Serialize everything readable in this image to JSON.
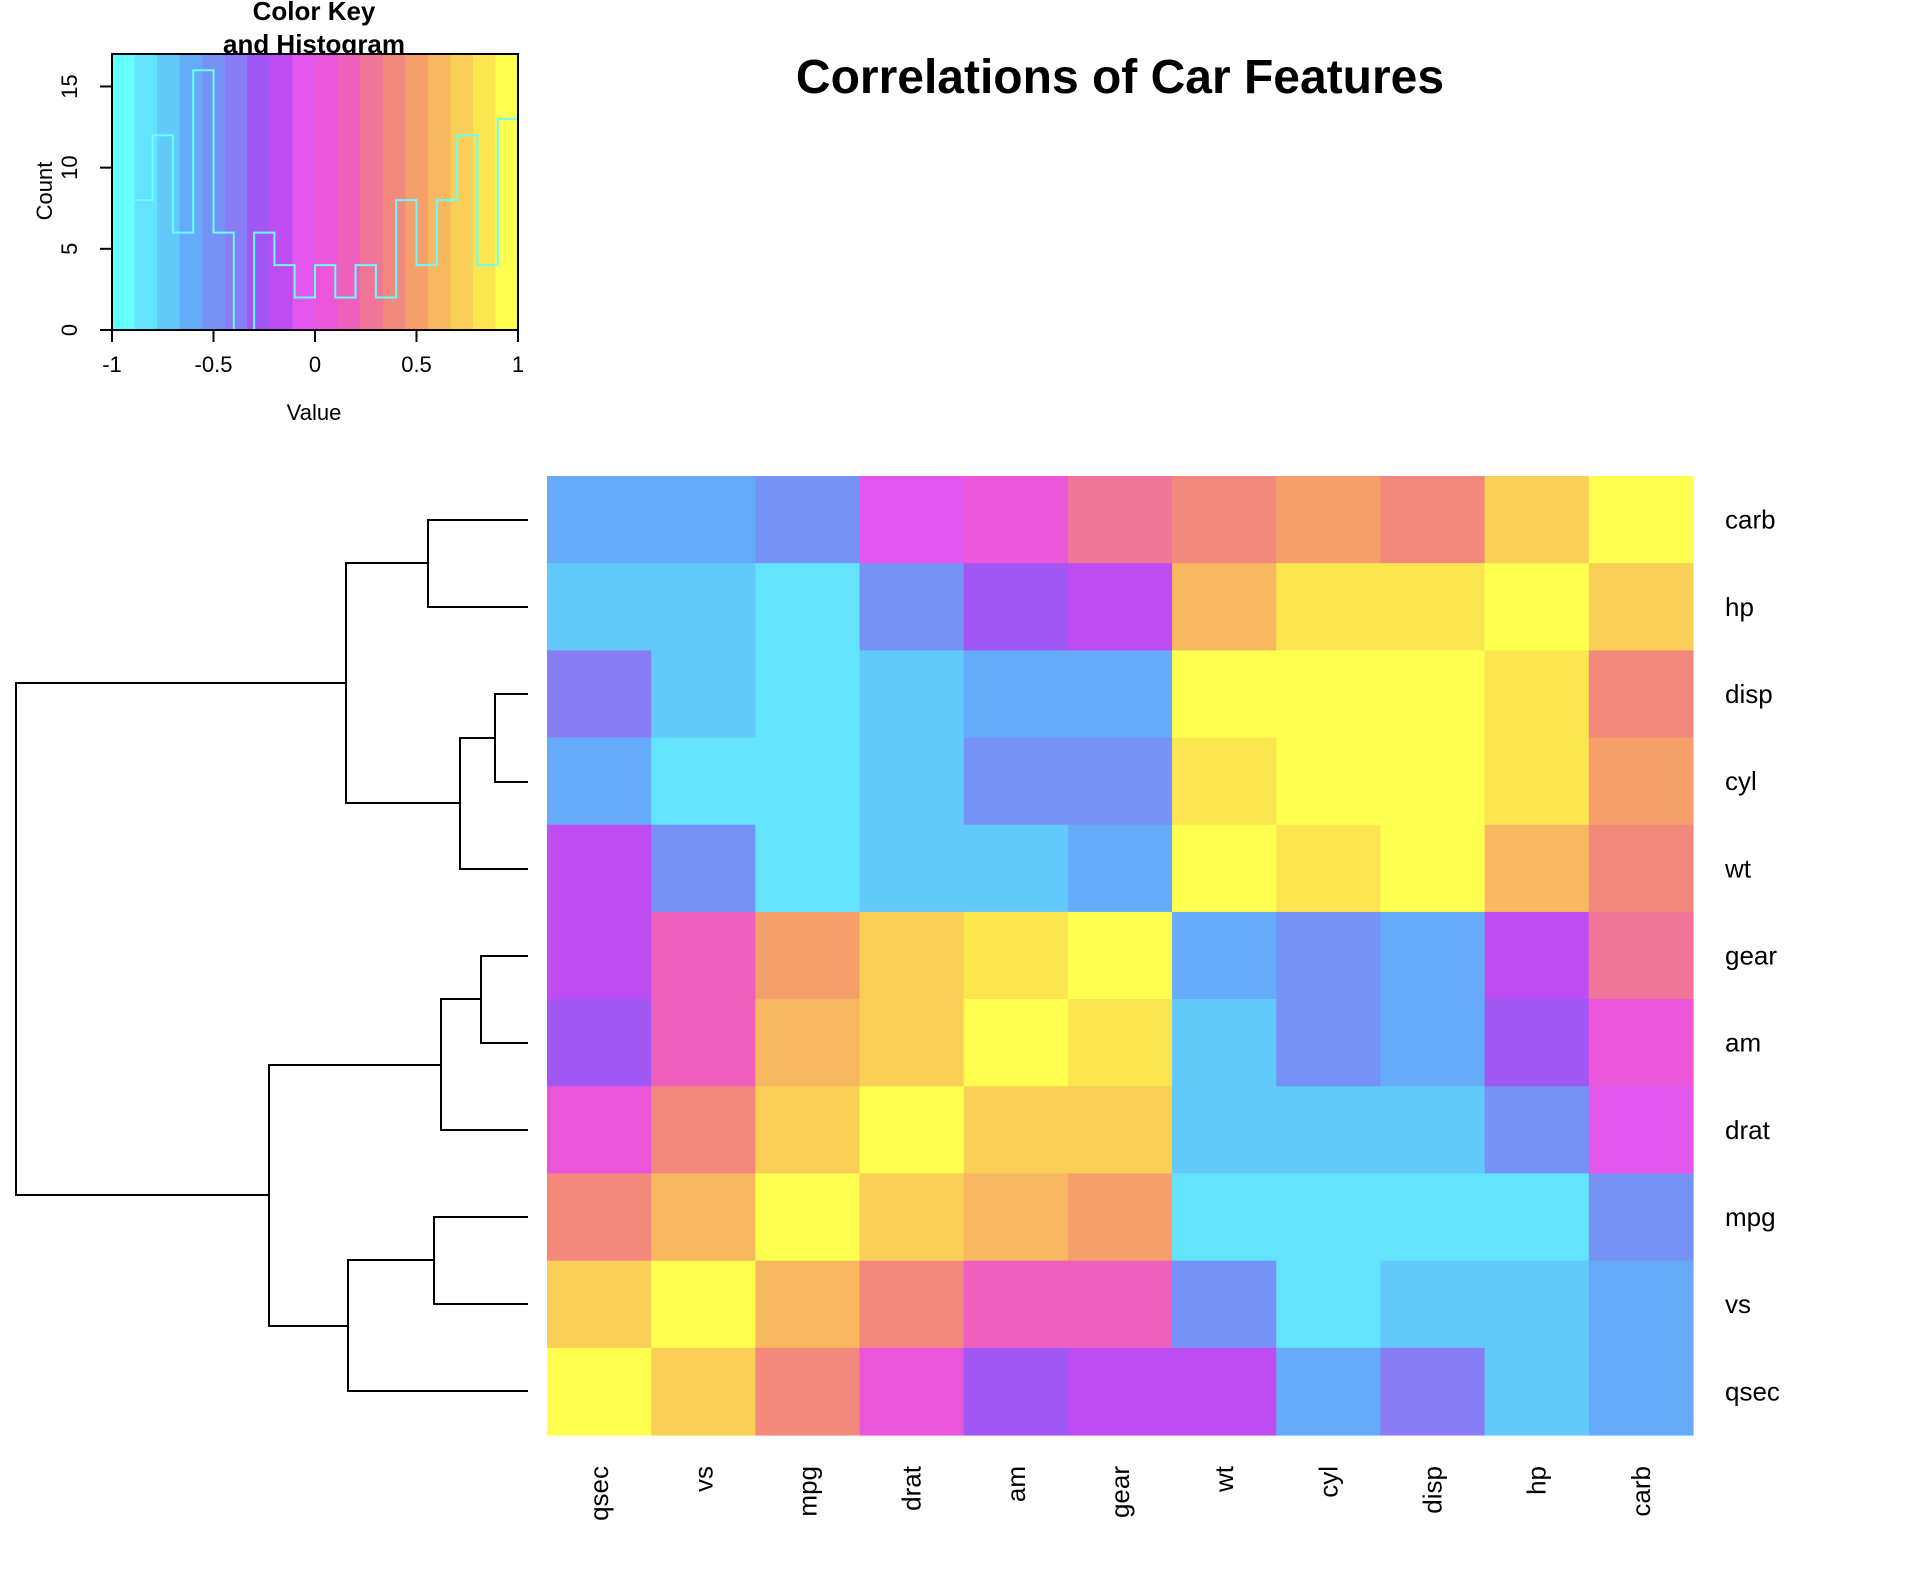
{
  "title": "Correlations of Car Features",
  "chart_data": {
    "type": "heatmap",
    "title": "Correlations of Car Features",
    "rows": [
      "carb",
      "hp",
      "disp",
      "cyl",
      "wt",
      "gear",
      "am",
      "drat",
      "mpg",
      "vs",
      "qsec"
    ],
    "cols": [
      "qsec",
      "vs",
      "mpg",
      "drat",
      "am",
      "gear",
      "wt",
      "cyl",
      "disp",
      "hp",
      "carb"
    ],
    "values": [
      [
        -0.66,
        -0.57,
        -0.55,
        -0.09,
        0.06,
        0.27,
        0.43,
        0.53,
        0.39,
        0.75,
        1.0
      ],
      [
        -0.71,
        -0.72,
        -0.78,
        -0.45,
        -0.24,
        -0.13,
        0.66,
        0.83,
        0.79,
        1.0,
        0.75
      ],
      [
        -0.43,
        -0.71,
        -0.85,
        -0.71,
        -0.59,
        -0.56,
        0.89,
        0.9,
        1.0,
        0.79,
        0.39
      ],
      [
        -0.59,
        -0.81,
        -0.85,
        -0.7,
        -0.52,
        -0.49,
        0.78,
        1.0,
        0.9,
        0.83,
        0.53
      ],
      [
        -0.17,
        -0.55,
        -0.87,
        -0.71,
        -0.69,
        -0.58,
        1.0,
        0.78,
        0.89,
        0.66,
        0.43
      ],
      [
        -0.21,
        0.21,
        0.48,
        0.7,
        0.79,
        1.0,
        -0.58,
        -0.49,
        -0.56,
        -0.13,
        0.27
      ],
      [
        -0.23,
        0.17,
        0.6,
        0.71,
        1.0,
        0.79,
        -0.69,
        -0.52,
        -0.59,
        -0.24,
        0.06
      ],
      [
        0.09,
        0.44,
        0.68,
        1.0,
        0.71,
        0.7,
        -0.71,
        -0.7,
        -0.71,
        -0.45,
        -0.09
      ],
      [
        0.42,
        0.66,
        1.0,
        0.68,
        0.6,
        0.48,
        -0.87,
        -0.85,
        -0.85,
        -0.78,
        -0.55
      ],
      [
        0.74,
        1.0,
        0.66,
        0.44,
        0.17,
        0.21,
        -0.55,
        -0.81,
        -0.71,
        -0.72,
        -0.57
      ],
      [
        1.0,
        0.74,
        0.42,
        0.09,
        -0.23,
        -0.21,
        -0.17,
        -0.59,
        -0.43,
        -0.71,
        -0.66
      ]
    ],
    "range": [
      -1,
      1
    ],
    "palette": [
      "#66FFFF",
      "#64E3FD",
      "#62C9FB",
      "#66ABF9",
      "#7593F7",
      "#887DF5",
      "#A157F3",
      "#BF4CF1",
      "#E357EF",
      "#EB55DA",
      "#EE60BB",
      "#F07598",
      "#F2897C",
      "#F5A06B",
      "#F7B860",
      "#F9CF57",
      "#FBE650",
      "#FFFF4F"
    ],
    "row_dendrogram": true,
    "key": {
      "title_line1": "Color Key",
      "title_line2": "and Histogram",
      "xlabel": "Value",
      "ylabel": "Count",
      "xticks": [
        "-1",
        "-0.5",
        "0",
        "0.5",
        "1"
      ],
      "yticks": [
        "0",
        "5",
        "10",
        "15"
      ],
      "histogram_counts": [
        0,
        8,
        12,
        6,
        16,
        6,
        0,
        6,
        4,
        2,
        4,
        2,
        4,
        2,
        8,
        4,
        8,
        12,
        4,
        13
      ],
      "histogram_color": "#66FFFF",
      "xlim": [
        -1,
        1
      ],
      "ylim": [
        0,
        17
      ]
    }
  }
}
